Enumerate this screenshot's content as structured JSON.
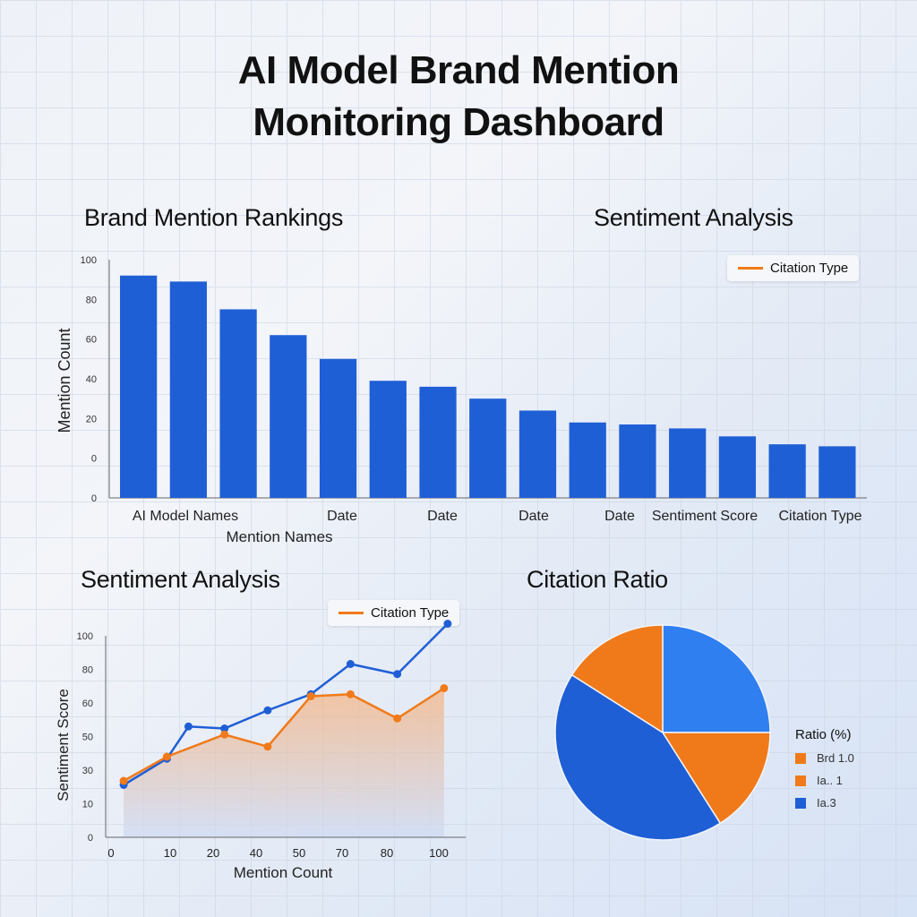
{
  "title_line1": "AI Model Brand Mention",
  "title_line2": "Monitoring Dashboard",
  "colors": {
    "blue": "#1f5fd6",
    "orange": "#f07a1a",
    "pie_light_blue": "#2f7ff0"
  },
  "sections": {
    "rankings": "Brand Mention Rankings",
    "sentiment_top": "Sentiment Analysis",
    "sentiment_bottom": "Sentiment Analysis",
    "citation": "Citation Ratio"
  },
  "legends": {
    "top_right": "Citation Type",
    "bottom_left": "Citation Type"
  },
  "pie_legend": {
    "title": "Ratio (%)",
    "items": [
      {
        "label": "Brd 1.0",
        "color": "#f07a1a"
      },
      {
        "label": "Ia.. 1",
        "color": "#f07a1a"
      },
      {
        "label": "Ia.3",
        "color": "#1f5fd6"
      }
    ]
  },
  "chart_data": [
    {
      "type": "bar",
      "title": "Brand Mention Rankings",
      "ylabel": "Mention Count",
      "xlabel": "Mention Names",
      "y_ticks": [
        "100",
        "80",
        "60",
        "40",
        "20",
        "0",
        "0"
      ],
      "x_tick_labels": [
        "AI Model Names",
        "Date",
        "Date",
        "Date",
        "Date",
        "Sentiment Score",
        "Citation Type"
      ],
      "ylim": [
        0,
        120
      ],
      "values": [
        112,
        109,
        95,
        82,
        70,
        59,
        56,
        50,
        44,
        38,
        37,
        35,
        31,
        27,
        26
      ],
      "color": "#1f5fd6"
    },
    {
      "type": "line",
      "title": "Sentiment Analysis",
      "ylabel": "Sentiment Score",
      "xlabel": "Mention Count",
      "x_ticks": [
        "0",
        "10",
        "20",
        "40",
        "50",
        "70",
        "80",
        "100"
      ],
      "y_ticks": [
        "100",
        "80",
        "60",
        "50",
        "30",
        "10",
        "0"
      ],
      "xlim": [
        0,
        100
      ],
      "ylim": [
        0,
        100
      ],
      "series": [
        {
          "color": "#1f5fd6",
          "x": [
            5,
            17,
            23,
            33,
            45,
            57,
            68,
            81,
            95
          ],
          "y": [
            26,
            39,
            55,
            54,
            63,
            71,
            86,
            81,
            106
          ]
        },
        {
          "color": "#f07a1a",
          "x": [
            5,
            17,
            33,
            45,
            57,
            68,
            81,
            94
          ],
          "y": [
            28,
            40,
            51,
            45,
            70,
            71,
            59,
            74
          ]
        }
      ]
    },
    {
      "type": "pie",
      "title": "Citation Ratio",
      "values": [
        25,
        16,
        43,
        16
      ],
      "colors": [
        "#2f7ff0",
        "#f07a1a",
        "#1f5fd6",
        "#f07a1a"
      ]
    }
  ]
}
